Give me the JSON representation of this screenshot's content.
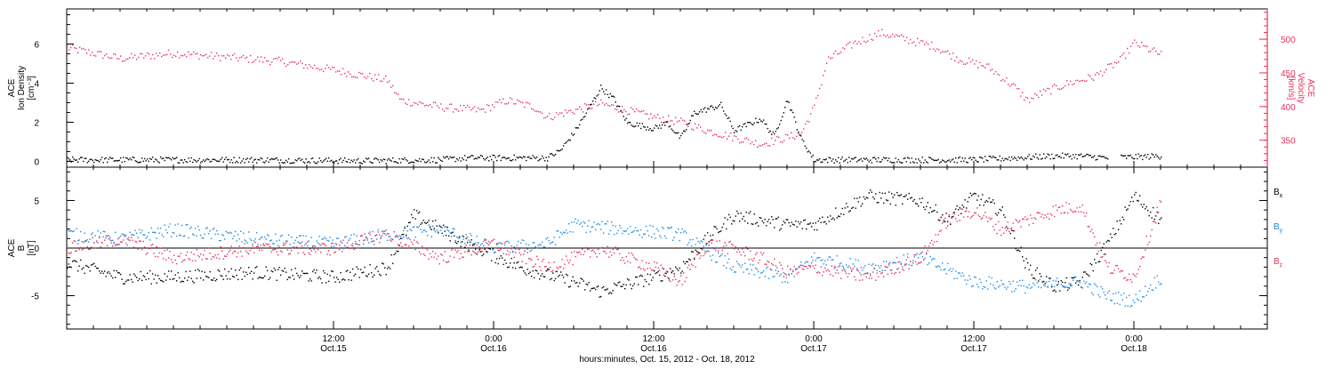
{
  "colors": {
    "black": "#000000",
    "pink": "#e8325a",
    "blue": "#1e8be6"
  },
  "time_axis": {
    "start": "2012-10-14T16:00",
    "end": "2012-10-18T10:00",
    "major_ticks": [
      {
        "time": "2012-10-15T12:00",
        "line1": "12:00",
        "line2": "Oct.15"
      },
      {
        "time": "2012-10-16T00:00",
        "line1": "0:00",
        "line2": "Oct.16"
      },
      {
        "time": "2012-10-16T12:00",
        "line1": "12:00",
        "line2": "Oct.16"
      },
      {
        "time": "2012-10-17T00:00",
        "line1": "0:00",
        "line2": "Oct.17"
      },
      {
        "time": "2012-10-17T12:00",
        "line1": "12:00",
        "line2": "Oct.17"
      },
      {
        "time": "2012-10-18T00:00",
        "line1": "0:00",
        "line2": "Oct.18"
      }
    ],
    "title": "hours:minutes, Oct. 15, 2012 - Oct. 18, 2012"
  },
  "chart_data": [
    {
      "type": "scatter",
      "panel": "top",
      "ylabel_lines": [
        "ACE",
        "Ion Density",
        "[cm⁻³]"
      ],
      "ylim": [
        -0.3,
        7.8
      ],
      "yticks": [
        0,
        2,
        4,
        6
      ],
      "y2label_lines": [
        "ACE",
        "Velocity",
        "[km/s]"
      ],
      "y2lim": [
        310,
        545
      ],
      "y2ticks": [
        350,
        400,
        450,
        500
      ],
      "y2_color": "#e8325a",
      "series": [
        {
          "axis": "left",
          "color": "#000000",
          "points": [
            [
              "2012-10-14T16:00",
              0.1
            ],
            [
              "2012-10-15T06:00",
              0.1
            ],
            [
              "2012-10-15T14:00",
              0.05
            ],
            [
              "2012-10-15T20:00",
              0.1
            ],
            [
              "2012-10-15T22:00",
              0.2
            ],
            [
              "2012-10-16T04:00",
              0.2
            ],
            [
              "2012-10-16T05:00",
              0.6
            ],
            [
              "2012-10-16T06:00",
              1.5
            ],
            [
              "2012-10-16T07:00",
              2.6
            ],
            [
              "2012-10-16T08:00",
              3.8
            ],
            [
              "2012-10-16T09:00",
              3.2
            ],
            [
              "2012-10-16T10:00",
              2.0
            ],
            [
              "2012-10-16T12:00",
              1.7
            ],
            [
              "2012-10-16T13:00",
              2.0
            ],
            [
              "2012-10-16T14:00",
              1.2
            ],
            [
              "2012-10-16T15:00",
              2.5
            ],
            [
              "2012-10-16T17:00",
              2.9
            ],
            [
              "2012-10-16T18:00",
              1.6
            ],
            [
              "2012-10-16T20:00",
              2.2
            ],
            [
              "2012-10-16T21:00",
              1.3
            ],
            [
              "2012-10-16T22:00",
              3.2
            ],
            [
              "2012-10-16T23:00",
              1.2
            ],
            [
              "2012-10-17T00:00",
              0.1
            ],
            [
              "2012-10-17T12:00",
              0.1
            ],
            [
              "2012-10-17T18:00",
              0.3
            ],
            [
              "2012-10-17T20:00",
              0.3
            ],
            [
              "2012-10-17T22:00",
              0.2
            ],
            [
              "2012-10-18T02:00",
              0.3
            ]
          ]
        },
        {
          "axis": "right",
          "color": "#e8325a",
          "points": [
            [
              "2012-10-14T16:00",
              488
            ],
            [
              "2012-10-14T20:00",
              472
            ],
            [
              "2012-10-15T00:00",
              480
            ],
            [
              "2012-10-15T08:00",
              468
            ],
            [
              "2012-10-15T12:00",
              455
            ],
            [
              "2012-10-15T16:00",
              440
            ],
            [
              "2012-10-15T17:00",
              410
            ],
            [
              "2012-10-15T20:00",
              400
            ],
            [
              "2012-10-15T23:00",
              395
            ],
            [
              "2012-10-16T01:00",
              410
            ],
            [
              "2012-10-16T03:00",
              400
            ],
            [
              "2012-10-16T04:00",
              385
            ],
            [
              "2012-10-16T06:00",
              395
            ],
            [
              "2012-10-16T08:00",
              405
            ],
            [
              "2012-10-16T10:00",
              395
            ],
            [
              "2012-10-16T12:00",
              385
            ],
            [
              "2012-10-16T14:00",
              378
            ],
            [
              "2012-10-16T16:00",
              365
            ],
            [
              "2012-10-16T18:00",
              355
            ],
            [
              "2012-10-16T20:00",
              345
            ],
            [
              "2012-10-16T22:00",
              355
            ],
            [
              "2012-10-16T23:00",
              360
            ],
            [
              "2012-10-17T00:00",
              400
            ],
            [
              "2012-10-17T01:00",
              470
            ],
            [
              "2012-10-17T03:00",
              495
            ],
            [
              "2012-10-17T05:00",
              510
            ],
            [
              "2012-10-17T07:00",
              500
            ],
            [
              "2012-10-17T09:00",
              490
            ],
            [
              "2012-10-17T11:00",
              470
            ],
            [
              "2012-10-17T13:00",
              460
            ],
            [
              "2012-10-17T15:00",
              430
            ],
            [
              "2012-10-17T16:00",
              410
            ],
            [
              "2012-10-17T17:00",
              420
            ],
            [
              "2012-10-17T19:00",
              435
            ],
            [
              "2012-10-17T21:00",
              445
            ],
            [
              "2012-10-17T23:00",
              470
            ],
            [
              "2012-10-18T00:00",
              495
            ],
            [
              "2012-10-18T02:00",
              478
            ]
          ]
        }
      ]
    },
    {
      "type": "scatter",
      "panel": "bottom",
      "ylabel_lines": [
        "ACE",
        "B",
        "[nT]"
      ],
      "ylim": [
        -8.5,
        8.5
      ],
      "yticks": [
        -5,
        0,
        5
      ],
      "legend": [
        {
          "label": "B",
          "sub": "x",
          "color": "#000000"
        },
        {
          "label": "B",
          "sub": "y",
          "color": "#1e8be6"
        },
        {
          "label": "B",
          "sub": "z",
          "color": "#e8325a"
        }
      ],
      "series": [
        {
          "name": "Bx",
          "color": "#000000",
          "points": [
            [
              "2012-10-14T16:00",
              -1.5
            ],
            [
              "2012-10-14T20:00",
              -3.0
            ],
            [
              "2012-10-15T00:00",
              -3.0
            ],
            [
              "2012-10-15T06:00",
              -2.5
            ],
            [
              "2012-10-15T12:00",
              -3.0
            ],
            [
              "2012-10-15T16:00",
              -2.0
            ],
            [
              "2012-10-15T18:00",
              3.5
            ],
            [
              "2012-10-15T22:00",
              0.5
            ],
            [
              "2012-10-16T02:00",
              -2.0
            ],
            [
              "2012-10-16T06:00",
              -3.5
            ],
            [
              "2012-10-16T08:00",
              -4.5
            ],
            [
              "2012-10-16T12:00",
              -3.0
            ],
            [
              "2012-10-16T14:00",
              -2.0
            ],
            [
              "2012-10-16T16:00",
              1.0
            ],
            [
              "2012-10-16T18:00",
              3.5
            ],
            [
              "2012-10-16T22:00",
              2.5
            ],
            [
              "2012-10-17T00:00",
              2.5
            ],
            [
              "2012-10-17T04:00",
              5.5
            ],
            [
              "2012-10-17T08:00",
              5.0
            ],
            [
              "2012-10-17T10:00",
              3.0
            ],
            [
              "2012-10-17T12:00",
              5.5
            ],
            [
              "2012-10-17T14:00",
              4.0
            ],
            [
              "2012-10-17T16:00",
              -2.0
            ],
            [
              "2012-10-17T18:00",
              -4.0
            ],
            [
              "2012-10-17T20:00",
              -3.5
            ],
            [
              "2012-10-17T22:00",
              0.5
            ],
            [
              "2012-10-18T00:00",
              5.5
            ],
            [
              "2012-10-18T02:00",
              3.0
            ]
          ]
        },
        {
          "name": "By",
          "color": "#1e8be6",
          "points": [
            [
              "2012-10-14T16:00",
              1.5
            ],
            [
              "2012-10-14T20:00",
              1.0
            ],
            [
              "2012-10-15T00:00",
              2.0
            ],
            [
              "2012-10-15T06:00",
              1.0
            ],
            [
              "2012-10-15T12:00",
              0.5
            ],
            [
              "2012-10-15T16:00",
              1.5
            ],
            [
              "2012-10-15T20:00",
              2.0
            ],
            [
              "2012-10-16T00:00",
              0.0
            ],
            [
              "2012-10-16T04:00",
              0.5
            ],
            [
              "2012-10-16T06:00",
              2.5
            ],
            [
              "2012-10-16T10:00",
              2.0
            ],
            [
              "2012-10-16T14:00",
              1.5
            ],
            [
              "2012-10-16T18:00",
              -2.0
            ],
            [
              "2012-10-16T22:00",
              -3.0
            ],
            [
              "2012-10-17T00:00",
              -1.0
            ],
            [
              "2012-10-17T04:00",
              -2.0
            ],
            [
              "2012-10-17T08:00",
              -1.0
            ],
            [
              "2012-10-17T12:00",
              -3.5
            ],
            [
              "2012-10-17T16:00",
              -4.0
            ],
            [
              "2012-10-17T20:00",
              -3.5
            ],
            [
              "2012-10-17T22:00",
              -5.0
            ],
            [
              "2012-10-18T00:00",
              -5.5
            ],
            [
              "2012-10-18T02:00",
              -3.0
            ]
          ]
        },
        {
          "name": "Bz",
          "color": "#e8325a",
          "points": [
            [
              "2012-10-14T16:00",
              0.0
            ],
            [
              "2012-10-14T20:00",
              1.0
            ],
            [
              "2012-10-15T00:00",
              -1.0
            ],
            [
              "2012-10-15T06:00",
              0.0
            ],
            [
              "2012-10-15T12:00",
              0.0
            ],
            [
              "2012-10-15T16:00",
              1.5
            ],
            [
              "2012-10-15T20:00",
              -1.0
            ],
            [
              "2012-10-16T00:00",
              0.5
            ],
            [
              "2012-10-16T04:00",
              -2.0
            ],
            [
              "2012-10-16T08:00",
              0.0
            ],
            [
              "2012-10-16T12:00",
              -2.0
            ],
            [
              "2012-10-16T14:00",
              -3.5
            ],
            [
              "2012-10-16T16:00",
              0.5
            ],
            [
              "2012-10-16T18:00",
              0.0
            ],
            [
              "2012-10-16T20:00",
              -1.0
            ],
            [
              "2012-10-16T22:00",
              -2.5
            ],
            [
              "2012-10-17T00:00",
              -2.0
            ],
            [
              "2012-10-17T04:00",
              -3.0
            ],
            [
              "2012-10-17T08:00",
              -1.0
            ],
            [
              "2012-10-17T10:00",
              3.0
            ],
            [
              "2012-10-17T12:00",
              4.0
            ],
            [
              "2012-10-17T14:00",
              2.0
            ],
            [
              "2012-10-17T16:00",
              3.0
            ],
            [
              "2012-10-17T18:00",
              4.0
            ],
            [
              "2012-10-17T20:00",
              4.5
            ],
            [
              "2012-10-17T22:00",
              -2.0
            ],
            [
              "2012-10-18T00:00",
              -3.0
            ],
            [
              "2012-10-18T02:00",
              5.0
            ]
          ]
        }
      ]
    }
  ]
}
